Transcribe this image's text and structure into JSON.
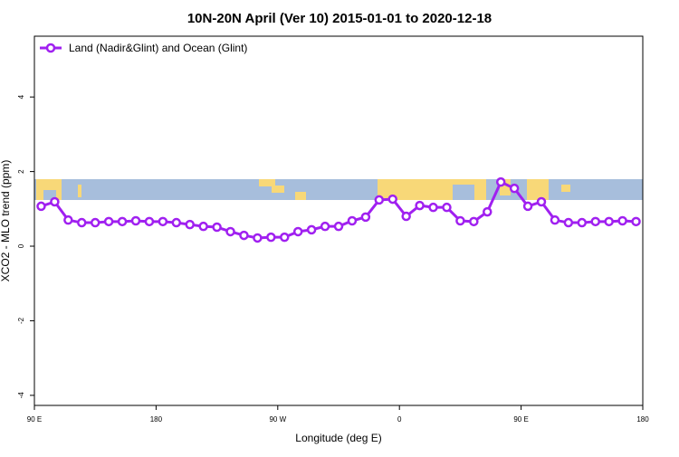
{
  "chart_data": {
    "type": "line",
    "title": "10N-20N April (Ver 10)   2015-01-01 to 2020-12-18",
    "xlabel": "Longitude (deg E)",
    "ylabel": "XCO2 - MLO trend (ppm)",
    "x": [
      95,
      105,
      115,
      125,
      135,
      145,
      155,
      165,
      175,
      185,
      195,
      205,
      215,
      225,
      235,
      245,
      255,
      265,
      275,
      285,
      295,
      305,
      315,
      325,
      335,
      345,
      355,
      365,
      375,
      385,
      395,
      405,
      415,
      425,
      435,
      445,
      455,
      465,
      475,
      485,
      495,
      505,
      515,
      525,
      535
    ],
    "series": [
      {
        "name": "Land (Nadir&Glint) and Ocean (Glint)",
        "color": "#a020f0",
        "values": [
          1.07,
          1.19,
          0.7,
          0.63,
          0.63,
          0.66,
          0.66,
          0.68,
          0.66,
          0.66,
          0.63,
          0.58,
          0.53,
          0.51,
          0.39,
          0.29,
          0.22,
          0.24,
          0.24,
          0.39,
          0.44,
          0.53,
          0.53,
          0.68,
          0.78,
          1.24,
          1.26,
          0.8,
          1.09,
          1.04,
          1.04,
          0.68,
          0.66,
          0.92,
          1.72,
          1.55,
          1.07,
          1.19,
          0.7,
          0.63,
          0.63,
          0.66,
          0.66,
          0.68,
          0.66
        ]
      }
    ],
    "xlim": [
      90,
      540
    ],
    "xticks": [
      {
        "value": 90,
        "label": "90 E"
      },
      {
        "value": 180,
        "label": "180"
      },
      {
        "value": 270,
        "label": "90 W"
      },
      {
        "value": 360,
        "label": "0"
      },
      {
        "value": 450,
        "label": "90 E"
      },
      {
        "value": 540,
        "label": "180"
      }
    ],
    "ylim": [
      -4.27,
      5.63
    ],
    "yticks": [
      -4,
      -2,
      0,
      2,
      4
    ],
    "legend": "top-left"
  }
}
